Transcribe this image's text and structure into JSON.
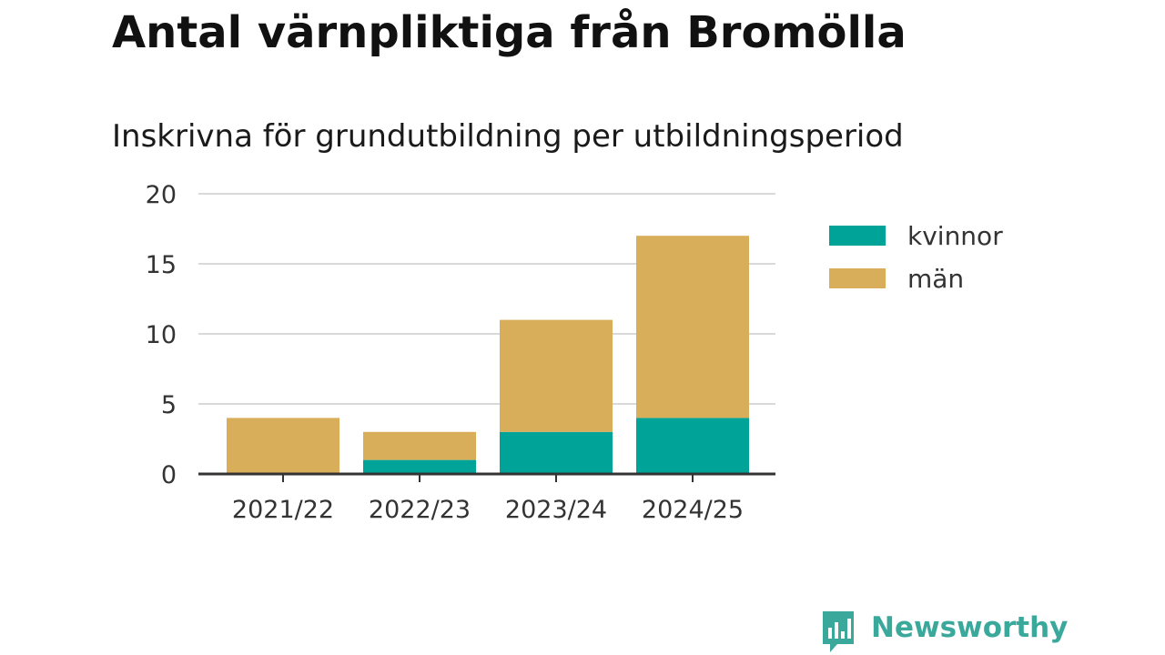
{
  "title": "Antal värnpliktiga från Bromölla",
  "subtitle": "Inskrivna för grundutbildning per utbildningsperiod",
  "brand": {
    "name": "Newsworthy",
    "icon": "bar-chart-speech-bubble-icon",
    "color": "#3aa89b"
  },
  "colors": {
    "kvinnor": "#00a398",
    "man": "#d9ae5a",
    "grid": "#d9d9d9",
    "axis": "#333333",
    "text": "#333333"
  },
  "chart_data": {
    "type": "bar",
    "stacked": true,
    "categories": [
      "2021/22",
      "2022/23",
      "2023/24",
      "2024/25"
    ],
    "series": [
      {
        "name": "kvinnor",
        "values": [
          0,
          1,
          3,
          4
        ],
        "color": "#00a398"
      },
      {
        "name": "män",
        "values": [
          4,
          2,
          8,
          13
        ],
        "color": "#d9ae5a"
      }
    ],
    "ylim": [
      0,
      20
    ],
    "yticks": [
      0,
      5,
      10,
      15,
      20
    ],
    "grid": true,
    "legend": "right"
  }
}
